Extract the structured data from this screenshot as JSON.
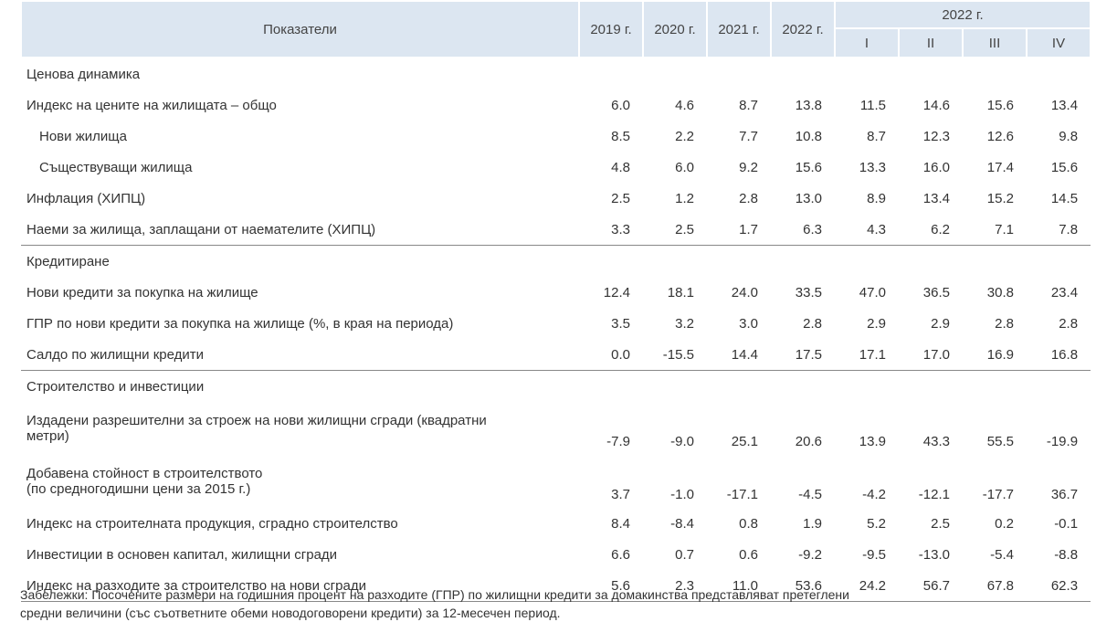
{
  "table": {
    "header": {
      "indicator": "Показатели",
      "years": [
        "2019 г.",
        "2020 г.",
        "2021 г.",
        "2022 г."
      ],
      "quarter_group": "2022 г.",
      "quarters": [
        "I",
        "II",
        "III",
        "IV"
      ]
    },
    "sections": [
      {
        "title": "Ценова динамика",
        "rows": [
          {
            "label": "Индекс на цените на жилищата – общо",
            "values": [
              "6.0",
              "4.6",
              "8.7",
              "13.8",
              "11.5",
              "14.6",
              "15.6",
              "13.4"
            ]
          },
          {
            "label": "Нови жилища",
            "values": [
              "8.5",
              "2.2",
              "7.7",
              "10.8",
              "8.7",
              "12.3",
              "12.6",
              "9.8"
            ]
          },
          {
            "label": "Съществуващи жилища",
            "values": [
              "4.8",
              "6.0",
              "9.2",
              "15.6",
              "13.3",
              "16.0",
              "17.4",
              "15.6"
            ]
          },
          {
            "label": "Инфлация (ХИПЦ)",
            "values": [
              "2.5",
              "1.2",
              "2.8",
              "13.0",
              "8.9",
              "13.4",
              "15.2",
              "14.5"
            ]
          },
          {
            "label": "Наеми за жилища, заплащани от наемателите (ХИПЦ)",
            "values": [
              "3.3",
              "2.5",
              "1.7",
              "6.3",
              "4.3",
              "6.2",
              "7.1",
              "7.8"
            ]
          }
        ]
      },
      {
        "title": "Кредитиране",
        "rows": [
          {
            "label": "Нови кредити за покупка на жилище",
            "values": [
              "12.4",
              "18.1",
              "24.0",
              "33.5",
              "47.0",
              "36.5",
              "30.8",
              "23.4"
            ]
          },
          {
            "label": "ГПР по нови кредити за покупка на жилище (%, в края на периода)",
            "values": [
              "3.5",
              "3.2",
              "3.0",
              "2.8",
              "2.9",
              "2.9",
              "2.8",
              "2.8"
            ]
          },
          {
            "label": "Салдо по жилищни кредити",
            "values": [
              "0.0",
              "-15.5",
              "14.4",
              "17.5",
              "17.1",
              "17.0",
              "16.9",
              "16.8"
            ]
          }
        ]
      },
      {
        "title": "Строителство и инвестиции",
        "rows": [
          {
            "label": [
              "Издадени разрешителни за строеж на нови жилищни сгради (квадратни",
              "метри)"
            ],
            "values": [
              "-7.9",
              "-9.0",
              "25.1",
              "20.6",
              "13.9",
              "43.3",
              "55.5",
              "-19.9"
            ]
          },
          {
            "label": [
              "Добавена стойност в строителството",
              "(по средногодишни цени за 2015 г.)"
            ],
            "values": [
              "3.7",
              "-1.0",
              "-17.1",
              "-4.5",
              "-4.2",
              "-12.1",
              "-17.7",
              "36.7"
            ]
          },
          {
            "label": "Индекс на строителната продукция, сградно строителство",
            "values": [
              "8.4",
              "-8.4",
              "0.8",
              "1.9",
              "5.2",
              "2.5",
              "0.2",
              "-0.1"
            ]
          },
          {
            "label": "Инвестиции в основен капитал, жилищни сгради",
            "values": [
              "6.6",
              "0.7",
              "0.6",
              "-9.2",
              "-9.5",
              "-13.0",
              "-5.4",
              "-8.8"
            ]
          },
          {
            "label": "Индекс на разходите за строителство на нови сгради",
            "values": [
              "5.6",
              "2.3",
              "11.0",
              "53.6",
              "24.2",
              "56.7",
              "67.8",
              "62.3"
            ]
          }
        ]
      }
    ]
  },
  "note": [
    "Забележки: Посочените размери на годишния процент на разходите (ГПР) по жилищни кредити за домакинства представляват претеглени",
    "средни величини (със съответните обеми новодоговорени кредити) за 12-месечен период."
  ]
}
